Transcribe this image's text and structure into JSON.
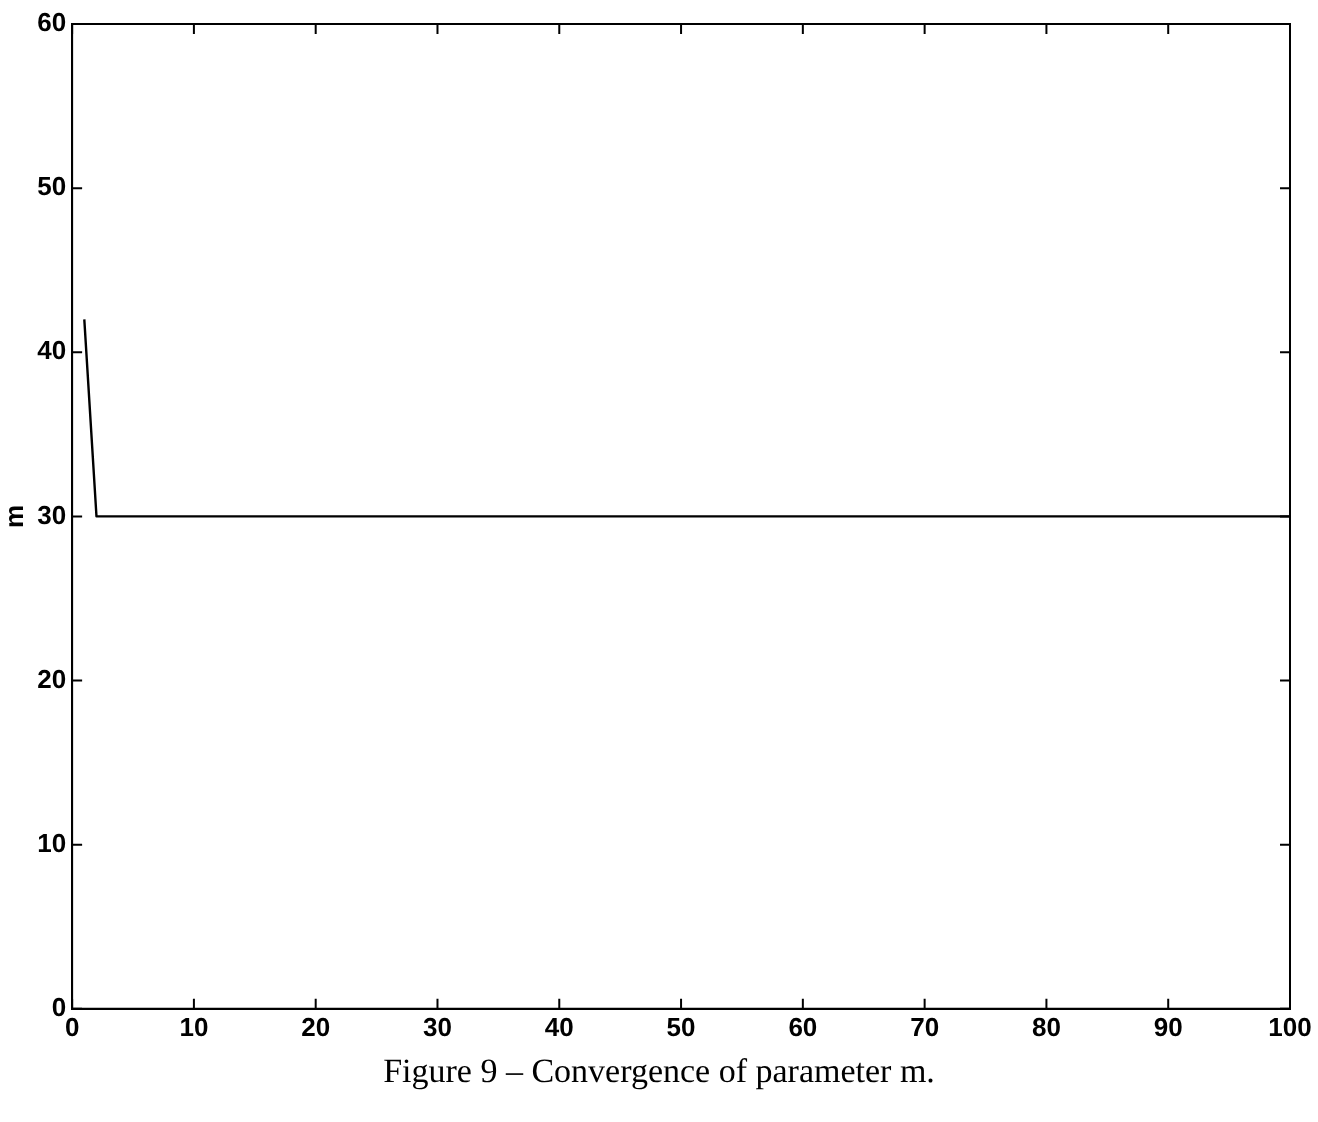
{
  "chart_data": {
    "type": "line",
    "ylabel": "m",
    "annotations": [
      "Figure 9 – Convergence of parameter m."
    ],
    "series": [
      {
        "color": "#000000",
        "x": [
          1,
          2,
          100
        ],
        "values": [
          42,
          30,
          30
        ]
      }
    ],
    "xlim": [
      0,
      100
    ],
    "xticks": [
      0,
      10,
      20,
      30,
      40,
      50,
      60,
      70,
      80,
      90,
      100
    ],
    "ylim": [
      0,
      60
    ],
    "yticks": [
      0,
      10,
      20,
      30,
      40,
      50,
      60
    ],
    "grid": false,
    "legend": false,
    "marker": "none",
    "line_style": "solid"
  }
}
